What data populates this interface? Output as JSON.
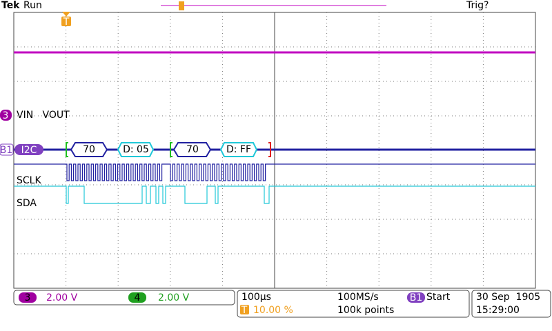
{
  "header": {
    "brand": "Tek",
    "status": "Run",
    "trigger_status": "Trig?"
  },
  "trigger_marker": "T",
  "channel_label": {
    "marker": "3",
    "label": "VIN   VOUT"
  },
  "bus": {
    "marker": "B1",
    "label": "I2C",
    "packets": [
      "70",
      "D: 05",
      "70",
      "D: FF"
    ]
  },
  "signals": [
    "SCLK",
    "SDA"
  ],
  "status_bar": {
    "ch3": {
      "number": "3",
      "scale": "2.00 V"
    },
    "ch4": {
      "number": "4",
      "scale": "2.00 V"
    },
    "timebase": "100µs",
    "trigger_position_marker": "T",
    "trigger_position": "10.00 %",
    "sample_rate": "100MS/s",
    "record_length": "100k points",
    "bus_trigger": {
      "marker": "B1",
      "text": "Start"
    },
    "date": "30 Sep  1905",
    "time": "15:29:00"
  }
}
